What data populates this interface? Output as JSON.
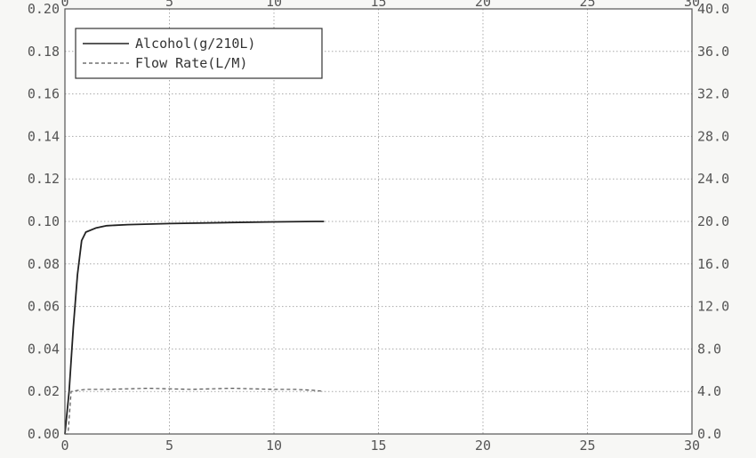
{
  "chart_data": {
    "type": "line",
    "title": "",
    "xlabel": "",
    "ylabel": "",
    "y2label": "",
    "xlim": [
      0,
      30
    ],
    "ylim": [
      0,
      0.2
    ],
    "y2lim": [
      0,
      40
    ],
    "x_ticks": [
      0,
      5,
      10,
      15,
      20,
      25,
      30
    ],
    "x_tick_labels": [
      "0",
      "5",
      "10",
      "15",
      "20",
      "25",
      "30"
    ],
    "y_ticks": [
      0,
      0.02,
      0.04,
      0.06,
      0.08,
      0.1,
      0.12,
      0.14,
      0.16,
      0.18,
      0.2
    ],
    "y_tick_labels": [
      "0.00",
      "0.02",
      "0.04",
      "0.06",
      "0.08",
      "0.10",
      "0.12",
      "0.14",
      "0.16",
      "0.18",
      "0.20"
    ],
    "y2_ticks": [
      0,
      4,
      8,
      12,
      16,
      20,
      24,
      28,
      32,
      36,
      40
    ],
    "y2_tick_labels": [
      "0.0",
      "4.0",
      "8.0",
      "12.0",
      "16.0",
      "20.0",
      "24.0",
      "28.0",
      "32.0",
      "36.0",
      "40.0"
    ],
    "grid": true,
    "legend_position": "top-left",
    "series": [
      {
        "name": "Alcohol(g/210L)",
        "axis": "left",
        "line_style": "solid",
        "color": "#222222",
        "x": [
          0,
          0.2,
          0.4,
          0.6,
          0.8,
          1.0,
          1.5,
          2.0,
          3.0,
          5.0,
          8.0,
          10.0,
          12.0,
          12.4
        ],
        "y": [
          0.0,
          0.02,
          0.05,
          0.075,
          0.091,
          0.095,
          0.097,
          0.098,
          0.0985,
          0.099,
          0.0995,
          0.0998,
          0.1,
          0.1
        ]
      },
      {
        "name": "Flow Rate(L/M)",
        "axis": "right",
        "line_style": "dashed",
        "color": "#555555",
        "x": [
          0,
          0.15,
          0.3,
          0.6,
          1.0,
          2.0,
          4.0,
          6.0,
          8.0,
          10.0,
          11.0,
          12.0,
          12.4
        ],
        "y": [
          0,
          0,
          4.0,
          4.1,
          4.2,
          4.2,
          4.3,
          4.2,
          4.3,
          4.2,
          4.2,
          4.1,
          4.0
        ]
      }
    ]
  }
}
